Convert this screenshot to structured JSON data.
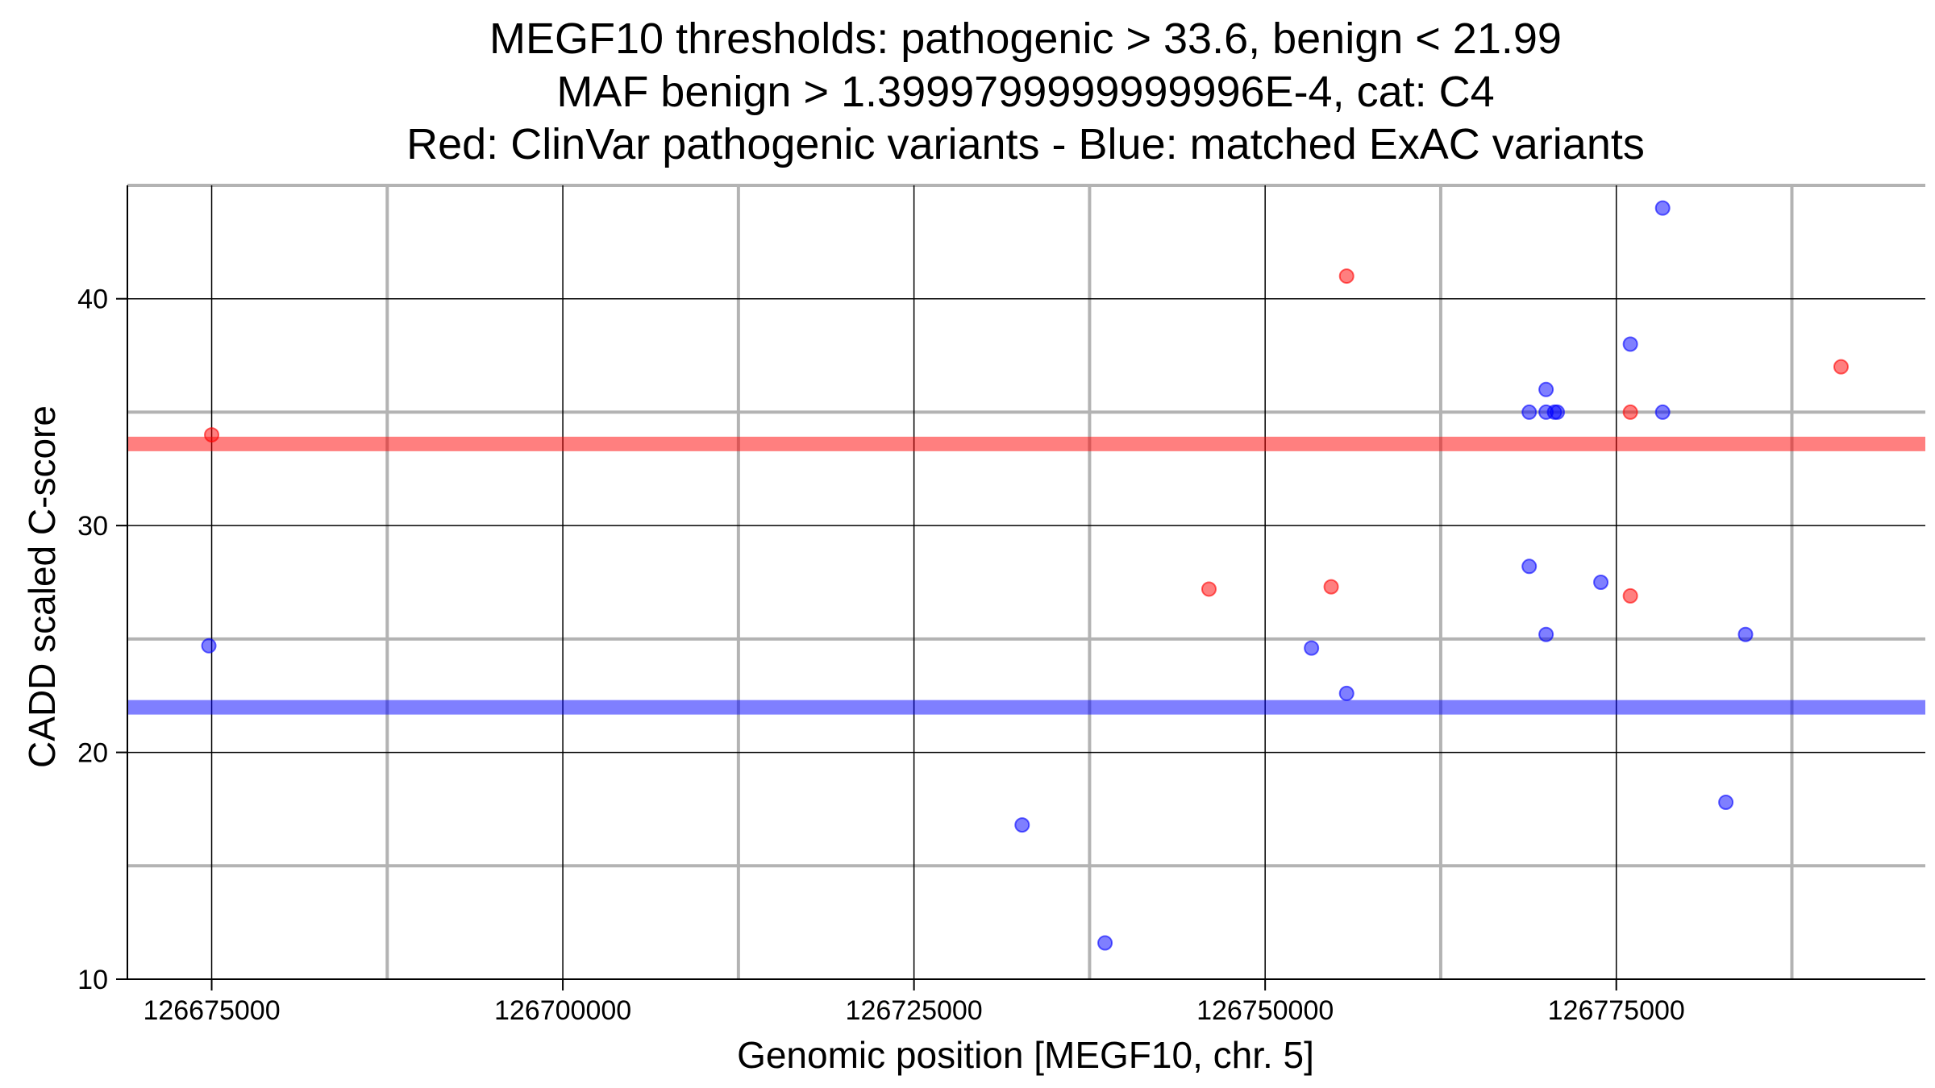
{
  "chart_data": {
    "type": "scatter",
    "title_lines": [
      "MEGF10 thresholds: pathogenic > 33.6, benign < 21.99",
      "MAF benign > 1.3999799999999996E-4, cat: C4",
      "Red: ClinVar pathogenic variants - Blue: matched ExAC variants"
    ],
    "xlabel": "Genomic position [MEGF10, chr. 5]",
    "ylabel": "CADD scaled C-score",
    "xlim": [
      126669000,
      126797000
    ],
    "ylim": [
      10,
      45
    ],
    "x_ticks": [
      126675000,
      126700000,
      126725000,
      126750000,
      126775000
    ],
    "x_tick_labels": [
      "126675000",
      "126700000",
      "126725000",
      "126750000",
      "126775000"
    ],
    "x_minor_gridlines": [
      126687500,
      126712500,
      126737500,
      126762500,
      126787500
    ],
    "y_ticks": [
      10,
      20,
      30,
      40
    ],
    "y_tick_labels": [
      "10",
      "20",
      "30",
      "40"
    ],
    "y_minor_gridlines": [
      15,
      25,
      35,
      45
    ],
    "grid": true,
    "thresholds": [
      {
        "name": "pathogenic",
        "value": 33.6,
        "color": "#ff0000"
      },
      {
        "name": "benign",
        "value": 21.99,
        "color": "#0000ff"
      }
    ],
    "series": [
      {
        "color": "#ff0000",
        "points": [
          {
            "x": 126675000,
            "y": 34.0
          },
          {
            "x": 126746000,
            "y": 27.2
          },
          {
            "x": 126754700,
            "y": 27.3
          },
          {
            "x": 126755800,
            "y": 41.0
          },
          {
            "x": 126776000,
            "y": 35.0
          },
          {
            "x": 126776000,
            "y": 26.9
          },
          {
            "x": 126791000,
            "y": 37.0
          }
        ]
      },
      {
        "color": "#0000ff",
        "points": [
          {
            "x": 126674800,
            "y": 24.7
          },
          {
            "x": 126732700,
            "y": 16.8
          },
          {
            "x": 126738600,
            "y": 11.6
          },
          {
            "x": 126753300,
            "y": 24.6
          },
          {
            "x": 126755800,
            "y": 22.6
          },
          {
            "x": 126768800,
            "y": 35.0
          },
          {
            "x": 126768800,
            "y": 28.2
          },
          {
            "x": 126770000,
            "y": 36.0
          },
          {
            "x": 126770000,
            "y": 35.0
          },
          {
            "x": 126770000,
            "y": 25.2
          },
          {
            "x": 126770600,
            "y": 35.0
          },
          {
            "x": 126770800,
            "y": 35.0
          },
          {
            "x": 126773900,
            "y": 27.5
          },
          {
            "x": 126776000,
            "y": 38.0
          },
          {
            "x": 126778300,
            "y": 44.0
          },
          {
            "x": 126778300,
            "y": 35.0
          },
          {
            "x": 126782800,
            "y": 17.8
          },
          {
            "x": 126784200,
            "y": 25.2
          }
        ]
      }
    ]
  }
}
